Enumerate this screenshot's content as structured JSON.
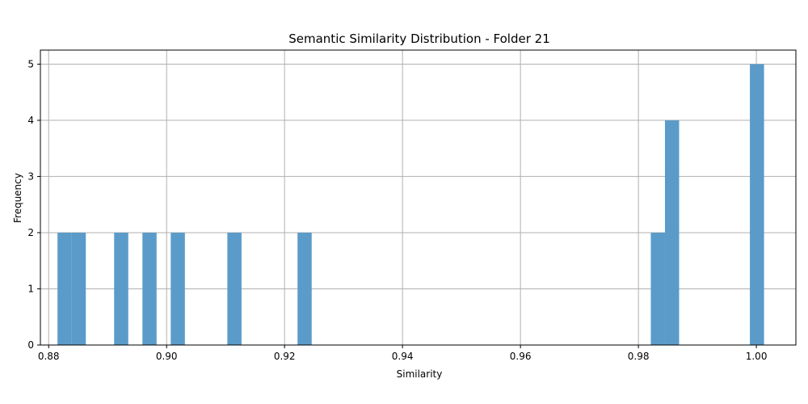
{
  "chart_data": {
    "type": "bar",
    "title": "Semantic Similarity Distribution - Folder 21",
    "xlabel": "Similarity",
    "ylabel": "Frequency",
    "xlim": [
      0.8786,
      1.0067
    ],
    "ylim": [
      0,
      5.25
    ],
    "xticks": [
      0.88,
      0.9,
      0.92,
      0.94,
      0.96,
      0.98,
      1.0
    ],
    "xtick_labels": [
      "0.88",
      "0.90",
      "0.92",
      "0.94",
      "0.96",
      "0.98",
      "1.00"
    ],
    "yticks": [
      0,
      1,
      2,
      3,
      4,
      5
    ],
    "ytick_labels": [
      "0",
      "1",
      "2",
      "3",
      "4",
      "5"
    ],
    "grid": true,
    "bar_color": "#5a9bc9",
    "bins": [
      {
        "x0": 0.8815,
        "x1": 0.8839,
        "count": 2
      },
      {
        "x0": 0.8839,
        "x1": 0.8863,
        "count": 2
      },
      {
        "x0": 0.8911,
        "x1": 0.8935,
        "count": 2
      },
      {
        "x0": 0.8959,
        "x1": 0.8983,
        "count": 2
      },
      {
        "x0": 0.9007,
        "x1": 0.9031,
        "count": 2
      },
      {
        "x0": 0.9103,
        "x1": 0.9127,
        "count": 2
      },
      {
        "x0": 0.9222,
        "x1": 0.9246,
        "count": 2
      },
      {
        "x0": 0.9821,
        "x1": 0.9845,
        "count": 2
      },
      {
        "x0": 0.9845,
        "x1": 0.9869,
        "count": 4
      },
      {
        "x0": 0.9989,
        "x1": 1.0013,
        "count": 5
      }
    ]
  }
}
